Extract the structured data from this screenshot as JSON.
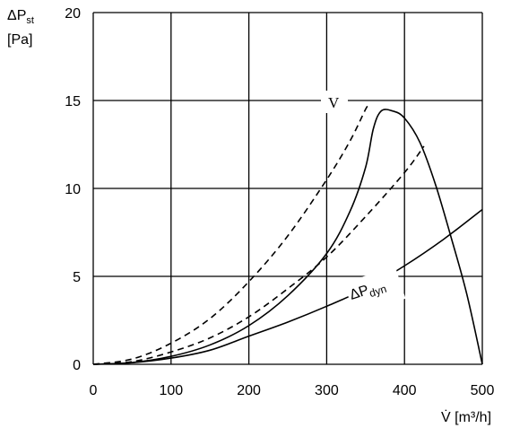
{
  "chart_data": {
    "type": "line",
    "xlabel": "V̇ [m³/h]",
    "ylabel_line1": "ΔP",
    "ylabel_sub": "st",
    "ylabel_line2": "[Pa]",
    "xlim": [
      0,
      500
    ],
    "ylim": [
      0,
      20
    ],
    "x_ticks": [
      0,
      100,
      200,
      300,
      400,
      500
    ],
    "y_ticks": [
      0,
      5,
      10,
      15,
      20
    ],
    "grid": true,
    "series": [
      {
        "name": "V",
        "style": "solid",
        "points": [
          [
            0,
            0
          ],
          [
            50,
            0.1
          ],
          [
            100,
            0.45
          ],
          [
            150,
            1.1
          ],
          [
            200,
            2.2
          ],
          [
            250,
            3.9
          ],
          [
            300,
            6.3
          ],
          [
            330,
            8.7
          ],
          [
            350,
            11.2
          ],
          [
            360,
            13.4
          ],
          [
            370,
            14.4
          ],
          [
            385,
            14.4
          ],
          [
            400,
            14.0
          ],
          [
            420,
            12.6
          ],
          [
            440,
            10.2
          ],
          [
            460,
            7.2
          ],
          [
            480,
            4.0
          ],
          [
            500,
            0
          ]
        ]
      },
      {
        "name": "ΔP",
        "name_sub": "dyn",
        "style": "solid",
        "points": [
          [
            0,
            0
          ],
          [
            50,
            0.09
          ],
          [
            100,
            0.35
          ],
          [
            150,
            0.8
          ],
          [
            200,
            1.6
          ],
          [
            250,
            2.4
          ],
          [
            300,
            3.3
          ],
          [
            350,
            4.3
          ],
          [
            400,
            5.6
          ],
          [
            450,
            7.1
          ],
          [
            500,
            8.8
          ]
        ]
      },
      {
        "name": "",
        "style": "dashed",
        "points": [
          [
            0,
            0
          ],
          [
            50,
            0.3
          ],
          [
            100,
            1.2
          ],
          [
            150,
            2.6
          ],
          [
            200,
            4.7
          ],
          [
            250,
            7.3
          ],
          [
            300,
            10.5
          ],
          [
            330,
            12.7
          ],
          [
            350,
            14.5
          ],
          [
            355,
            14.8
          ]
        ]
      },
      {
        "name": "",
        "style": "dashed",
        "points": [
          [
            0,
            0
          ],
          [
            50,
            0.15
          ],
          [
            100,
            0.7
          ],
          [
            150,
            1.5
          ],
          [
            200,
            2.7
          ],
          [
            250,
            4.3
          ],
          [
            300,
            6.1
          ],
          [
            350,
            8.4
          ],
          [
            400,
            10.9
          ],
          [
            425,
            12.4
          ]
        ]
      }
    ]
  }
}
